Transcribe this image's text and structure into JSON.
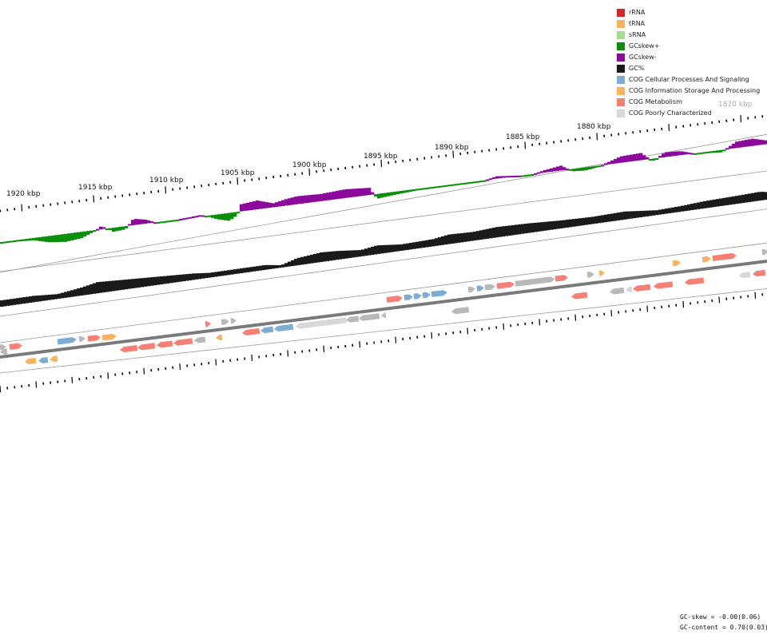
{
  "legend": [
    {
      "label": "rRNA",
      "color": "#d62728"
    },
    {
      "label": "tRNA",
      "color": "#f9b25e"
    },
    {
      "label": "sRNA",
      "color": "#a6db94"
    },
    {
      "label": "GCskew+",
      "color": "#0a8f0a"
    },
    {
      "label": "GCskew-",
      "color": "#8b0a9c"
    },
    {
      "label": "GC%",
      "color": "#1a1a1a"
    },
    {
      "label": "COG Cellular Processes And Signaling",
      "color": "#7eadd3"
    },
    {
      "label": "COG Information Storage And Processing",
      "color": "#f9b25e"
    },
    {
      "label": "COG Metabolism",
      "color": "#f58073"
    },
    {
      "label": "COG Poorly Characterized",
      "color": "#d8d8d8"
    }
  ],
  "ruler": {
    "labels": [
      "1920 kbp",
      "1915 kbp",
      "1910 kbp",
      "1905 kbp",
      "1900 kbp",
      "1895 kbp",
      "1890 kbp",
      "1885 kbp",
      "1880 kbp",
      "1870 kbp"
    ],
    "faded_labels": [
      "1870 kbp"
    ]
  },
  "stats": {
    "gc_skew": "GC-skew = -0.00(0.06)",
    "gc_content": "GC-content = 0.70(0.03)"
  },
  "features": {
    "gene_colors": {
      "cellular": "#7eadd3",
      "information": "#f9b25e",
      "metabolism": "#f58073",
      "poorly_characterized": "#d8d8d8",
      "unknown": "#b9b9b9"
    }
  }
}
